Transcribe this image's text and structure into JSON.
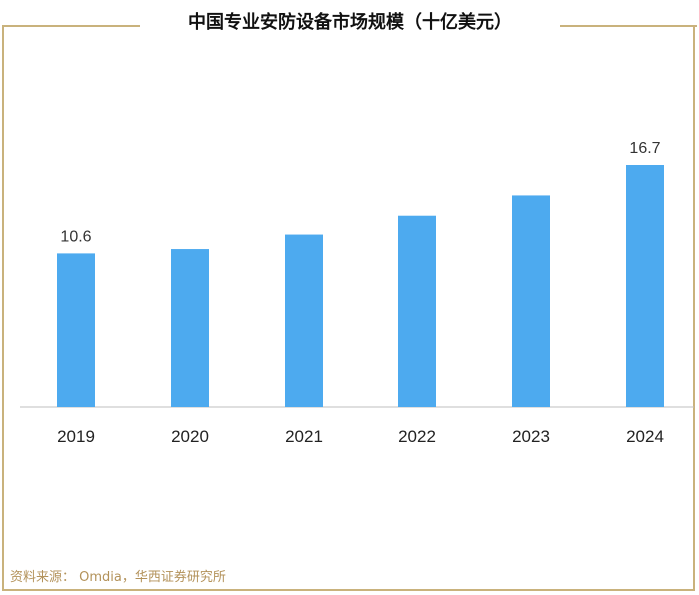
{
  "chart_data": {
    "type": "bar",
    "title": "中国专业安防设备市场规模（十亿美元）",
    "categories": [
      "2019",
      "2020",
      "2021",
      "2022",
      "2023",
      "2024"
    ],
    "values": [
      10.6,
      10.9,
      11.9,
      13.2,
      14.6,
      16.7
    ],
    "data_labels": [
      "10.6",
      "",
      "",
      "",
      "",
      "16.7"
    ],
    "bar_color": "#4daaef",
    "ylim": [
      0,
      17.5
    ],
    "grid": false,
    "legend": "none"
  },
  "source": "资料来源： Omdia，华西证券研究所",
  "colors": {
    "frame": "#c9b27c",
    "source_text": "#b3925a",
    "axis": "#bfbfbf"
  }
}
